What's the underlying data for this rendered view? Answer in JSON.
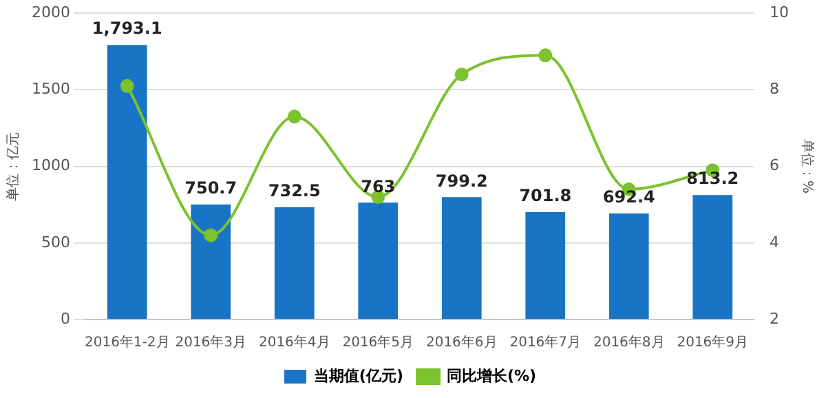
{
  "chart_data": {
    "type": "bar",
    "categories": [
      "2016年1-2月",
      "2016年3月",
      "2016年4月",
      "2016年5月",
      "2016年6月",
      "2016年7月",
      "2016年8月",
      "2016年9月"
    ],
    "ylabel": "单位：亿元",
    "y2label": "单位：%",
    "series": [
      {
        "name": "当期值(亿元)",
        "color": "#1874c4",
        "values": [
          1793.1,
          750.7,
          732.5,
          763,
          799.2,
          701.8,
          692.4,
          813.2
        ],
        "value_labels": [
          "1,793.1",
          "750.7",
          "732.5",
          "763",
          "799.2",
          "701.8",
          "692.4",
          "813.2"
        ]
      },
      {
        "name": "同比增长(%)",
        "type": "line",
        "axis": "y2",
        "color": "#7cc22e",
        "values": [
          8.1,
          4.2,
          7.3,
          5.2,
          8.4,
          8.9,
          5.4,
          5.9
        ]
      }
    ],
    "ylim": [
      0,
      2000
    ],
    "yticks": [
      0,
      500,
      1000,
      1500,
      2000
    ],
    "y2lim": [
      2,
      10
    ],
    "y2ticks": [
      2,
      4,
      6,
      8,
      10
    ],
    "grid": "y",
    "legend": "bottom",
    "marker": "circle"
  }
}
